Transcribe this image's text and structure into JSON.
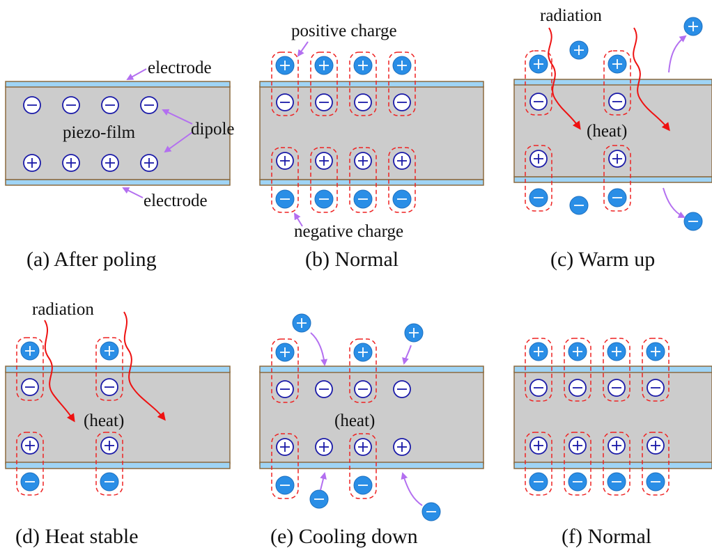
{
  "colors": {
    "film": "#cccccc",
    "film_border": "#8c6a3e",
    "electrode": "#9fd4f5",
    "dipole_ring": "#1a1aa8",
    "charge_fill": "#2a8ee6",
    "arrow_purple": "#b36ff0",
    "arrow_red": "#ee1111",
    "dashed_box": "#ee2222"
  },
  "panels": [
    {
      "id": "a",
      "caption": "(a) After poling",
      "labels": {
        "electrode_top": "electrode",
        "electrode_bottom": "electrode",
        "film": "piezo-film",
        "dipole": "dipole"
      }
    },
    {
      "id": "b",
      "caption": "(b) Normal",
      "labels": {
        "positive_charge": "positive charge",
        "negative_charge": "negative charge"
      }
    },
    {
      "id": "c",
      "caption": "(c) Warm up",
      "labels": {
        "radiation": "radiation",
        "heat": "(heat)"
      }
    },
    {
      "id": "d",
      "caption": "(d) Heat stable",
      "labels": {
        "radiation": "radiation",
        "heat": "(heat)"
      }
    },
    {
      "id": "e",
      "caption": "(e) Cooling down",
      "labels": {
        "heat": "(heat)"
      }
    },
    {
      "id": "f",
      "caption": "(f) Normal",
      "labels": {}
    }
  ]
}
